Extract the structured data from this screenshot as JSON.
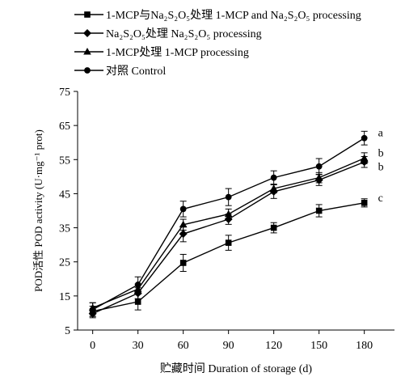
{
  "chart_data": {
    "type": "line",
    "xlabel": "贮藏时间 Duration of storage (d)",
    "ylabel": "POD活性 POD activity (U·mg⁻¹ prot)",
    "x": [
      0,
      30,
      60,
      90,
      120,
      150,
      180
    ],
    "xticks": [
      "0",
      "30",
      "60",
      "90",
      "120",
      "150",
      "180"
    ],
    "yticks": [
      "5",
      "15",
      "25",
      "35",
      "45",
      "55",
      "65",
      "75"
    ],
    "xlim": [
      -10,
      200
    ],
    "ylim": [
      5,
      75
    ],
    "grid": false,
    "legend_position": "top-left",
    "series": [
      {
        "name": "1-MCP与Na₂S₂O₅处理 1-MCP and Na₂S₂O₅ processing",
        "marker": "square",
        "values": [
          10.5,
          13.3,
          24.7,
          30.6,
          35.0,
          40.0,
          42.3
        ],
        "errors": [
          1.5,
          2.4,
          2.5,
          2.2,
          1.5,
          1.8,
          1.2
        ],
        "sig": "c"
      },
      {
        "name": "Na₂S₂O₅处理 Na₂S₂O₅ processing",
        "marker": "diamond",
        "values": [
          9.8,
          15.8,
          33.2,
          37.5,
          45.6,
          49.0,
          54.3
        ],
        "errors": [
          1.2,
          1.6,
          2.3,
          1.5,
          2.0,
          1.6,
          1.6
        ],
        "sig": "b"
      },
      {
        "name": "1-MCP处理 1-MCP processing",
        "marker": "triangle",
        "values": [
          11.5,
          17.0,
          35.9,
          39.0,
          46.5,
          49.7,
          55.4
        ],
        "errors": [
          1.5,
          1.5,
          1.6,
          1.5,
          1.3,
          1.5,
          1.6
        ],
        "sig": "b"
      },
      {
        "name": "对照 Control",
        "marker": "circle",
        "values": [
          11.0,
          18.3,
          40.5,
          44.0,
          49.7,
          53.0,
          61.3
        ],
        "errors": [
          2.0,
          2.3,
          2.3,
          2.5,
          2.0,
          2.3,
          2.0
        ],
        "sig": "a"
      }
    ]
  }
}
